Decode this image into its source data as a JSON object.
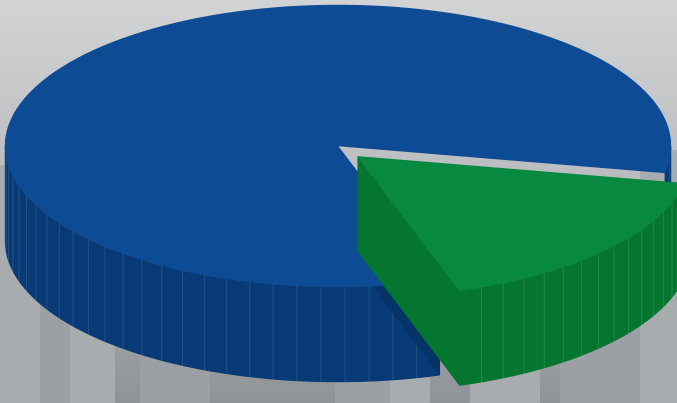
{
  "chart_data": {
    "type": "pie",
    "style": "3d-exploded",
    "title": "",
    "slices": [
      {
        "value": 83,
        "color": "#0e4b95",
        "side_color": "#073a76",
        "exploded": false
      },
      {
        "value": 17,
        "color": "#07893f",
        "side_color": "#05762f",
        "exploded": true
      }
    ],
    "legend": "none",
    "data_labels": "none"
  },
  "background": {
    "description_color": "#b9bcbf",
    "style": "grayscale city skyline photograph"
  }
}
